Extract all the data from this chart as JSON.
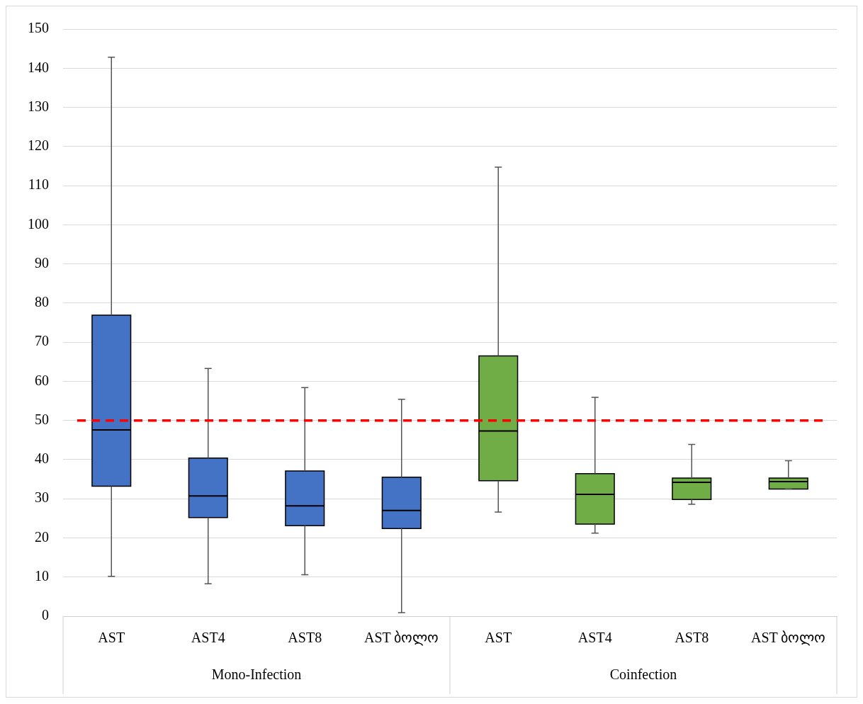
{
  "chart_data": {
    "type": "box",
    "categories": [
      "AST",
      "AST4",
      "AST8",
      "AST ბოლო",
      "AST",
      "AST4",
      "AST8",
      "AST ბოლო"
    ],
    "series": [
      {
        "color": "#4472c4",
        "boxes": [
          {
            "low": 10.2,
            "q1": 33.2,
            "median": 47.6,
            "q3": 76.9,
            "high": 142.8
          },
          {
            "low": 8.3,
            "q1": 25.2,
            "median": 30.7,
            "q3": 40.4,
            "high": 63.3
          },
          {
            "low": 10.6,
            "q1": 23.1,
            "median": 28.2,
            "q3": 37.1,
            "high": 58.4
          },
          {
            "low": 0.9,
            "q1": 22.4,
            "median": 27.0,
            "q3": 35.5,
            "high": 55.4
          },
          null,
          null,
          null,
          null
        ]
      },
      {
        "color": "#70ad47",
        "boxes": [
          null,
          null,
          null,
          null,
          {
            "low": 26.6,
            "q1": 34.6,
            "median": 47.3,
            "q3": 66.5,
            "high": 114.7
          },
          {
            "low": 21.2,
            "q1": 23.5,
            "median": 31.1,
            "q3": 36.4,
            "high": 55.9
          },
          {
            "low": 28.6,
            "q1": 29.8,
            "median": 34.2,
            "q3": 35.3,
            "high": 43.9
          },
          {
            "low": 32.5,
            "q1": 32.5,
            "median": 34.4,
            "q3": 35.3,
            "high": 39.7
          }
        ]
      }
    ],
    "annotations": [
      "Mono-Infection",
      "Coinfection"
    ],
    "ylim": [
      0,
      150
    ],
    "yticks": [
      0,
      10,
      20,
      30,
      40,
      50,
      60,
      70,
      80,
      90,
      100,
      110,
      120,
      130,
      140,
      150
    ],
    "grid": "y",
    "legend": false,
    "ref_lines": [
      {
        "axis": "y",
        "value": 50,
        "color": "#ff0000",
        "line_style": "dashed"
      }
    ]
  }
}
